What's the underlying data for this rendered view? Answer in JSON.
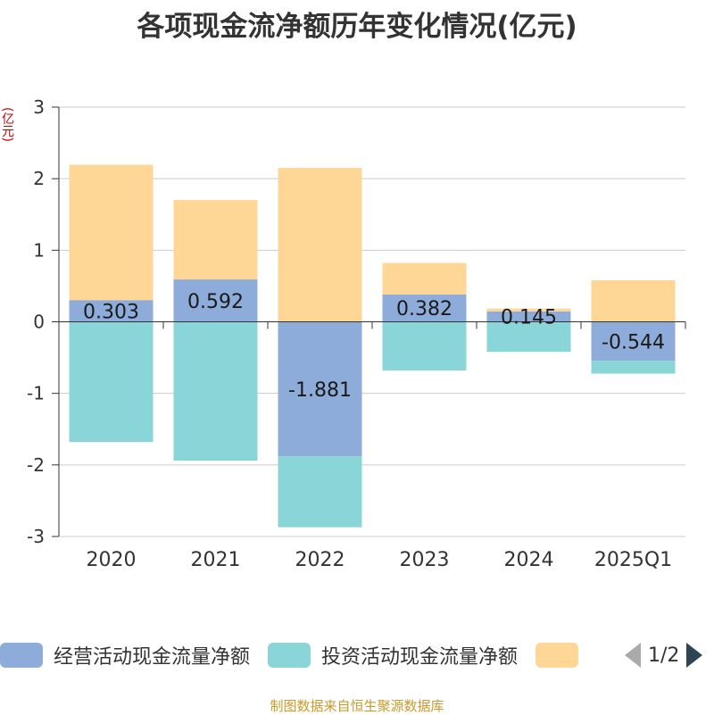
{
  "chart_data": {
    "type": "bar",
    "stacked": true,
    "title": "各项现金流净额历年变化情况(亿元)",
    "ylabel": "(亿元)",
    "xlabel": "",
    "categories": [
      "2020",
      "2021",
      "2022",
      "2023",
      "2024",
      "2025Q1"
    ],
    "ylim": [
      -3,
      3
    ],
    "yticks": [
      3,
      2,
      1,
      0,
      -1,
      -2,
      -3
    ],
    "grid": true,
    "series": [
      {
        "name": "经营活动现金流量净额",
        "color": "#8eacd9",
        "values": [
          0.303,
          0.592,
          -1.881,
          0.382,
          0.145,
          -0.544
        ],
        "labels": [
          "0.303",
          "0.592",
          "-1.881",
          "0.382",
          "0.145",
          "-0.544"
        ]
      },
      {
        "name": "投资活动现金流量净额",
        "color": "#89d5d8",
        "values": [
          -1.68,
          -1.94,
          -0.99,
          -0.68,
          -0.42,
          -0.18
        ]
      },
      {
        "name": "",
        "color": "#fed797",
        "values": [
          1.89,
          1.11,
          2.15,
          0.44,
          0.04,
          0.58
        ]
      }
    ],
    "legend_position": "bottom"
  },
  "legend": {
    "items": [
      {
        "label": "经营活动现金流量净额",
        "color": "#8eacd9"
      },
      {
        "label": "投资活动现金流量净额",
        "color": "#89d5d8"
      },
      {
        "label": "",
        "color": "#fed797"
      }
    ],
    "page_text": "1/2"
  },
  "source": "制图数据来自恒生聚源数据库"
}
